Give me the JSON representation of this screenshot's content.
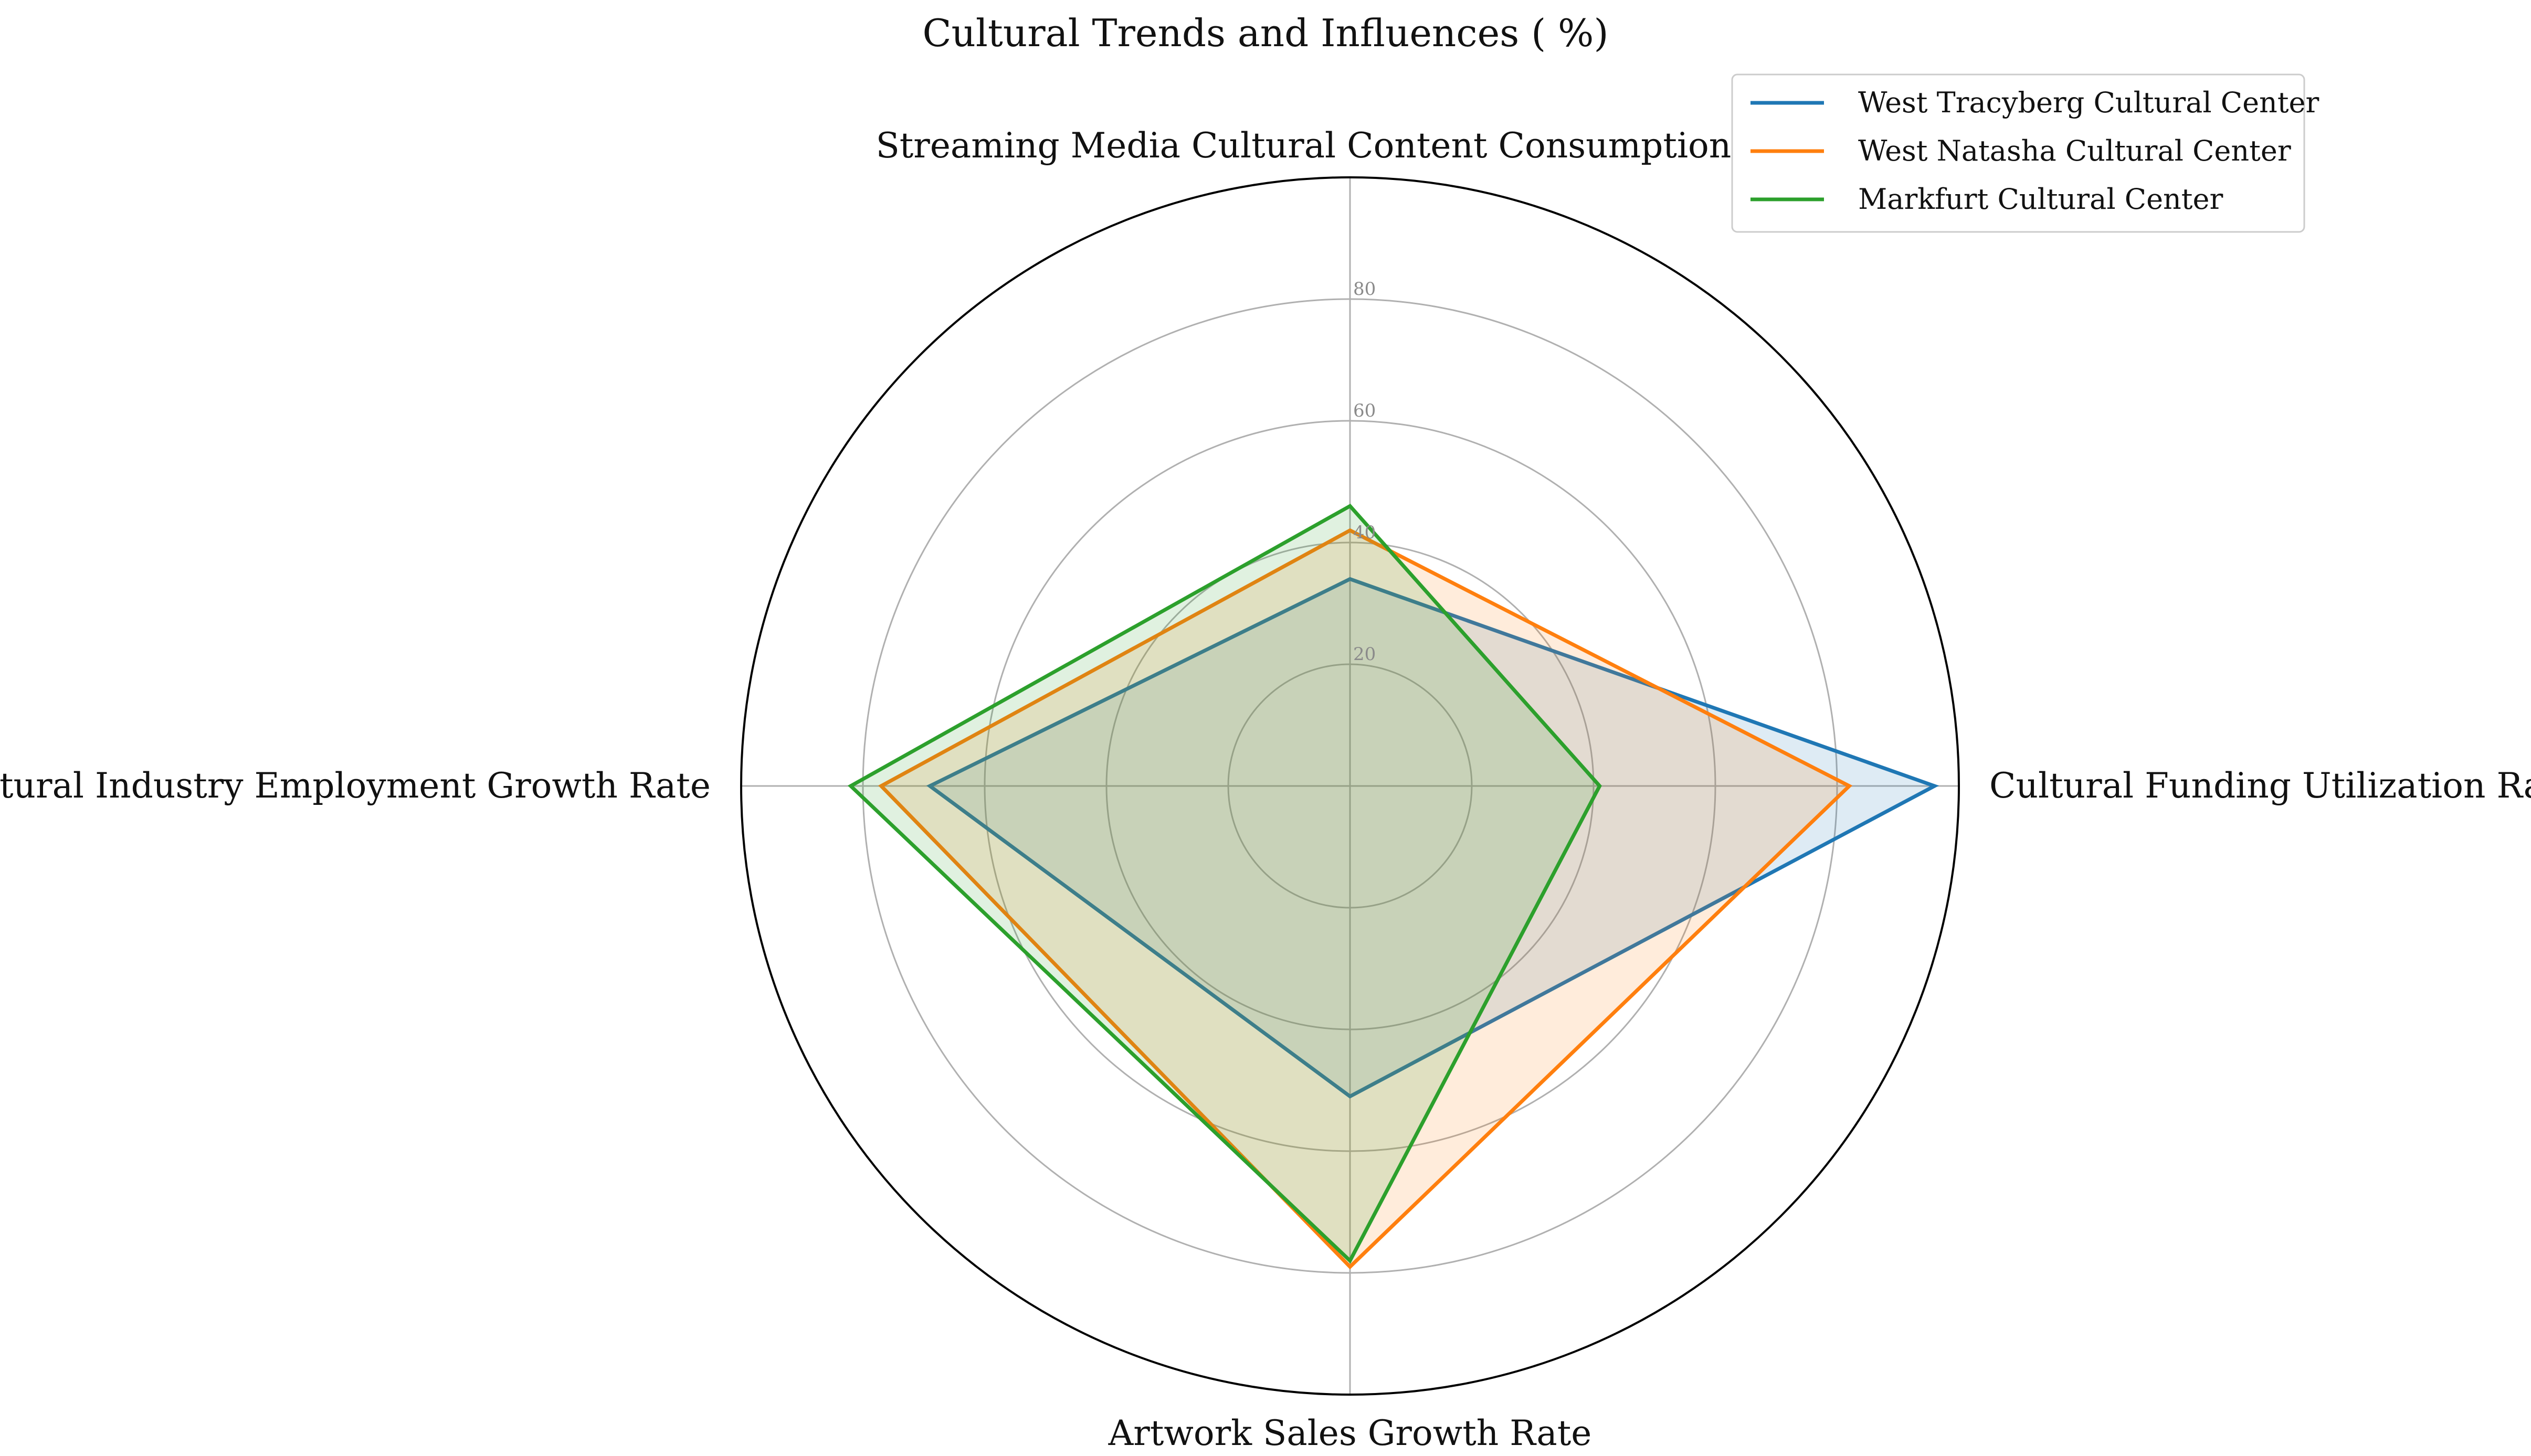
{
  "chart_data": {
    "type": "radar",
    "title": "Cultural Trends and Influences ( %)",
    "axes": [
      "Streaming Media Cultural Content Consumption Rate",
      "Cultural Funding Utilization Rate",
      "Artwork Sales Growth Rate",
      "Cultural Industry Employment Growth Rate"
    ],
    "rlim": [
      0,
      100
    ],
    "rticks": [
      20,
      40,
      60,
      80
    ],
    "rtick_labels": [
      "20",
      "40",
      "60",
      "80"
    ],
    "grid": true,
    "legend_position": "top-right",
    "series": [
      {
        "name": "West Tracyberg Cultural Center",
        "color": "#1f77b4",
        "values": [
          34,
          96,
          51,
          69
        ]
      },
      {
        "name": "West Natasha Cultural Center",
        "color": "#ff7f0e",
        "values": [
          42,
          82,
          79,
          77
        ]
      },
      {
        "name": "Markfurt Cultural Center",
        "color": "#2ca02c",
        "values": [
          46,
          41,
          78,
          82
        ]
      }
    ]
  }
}
